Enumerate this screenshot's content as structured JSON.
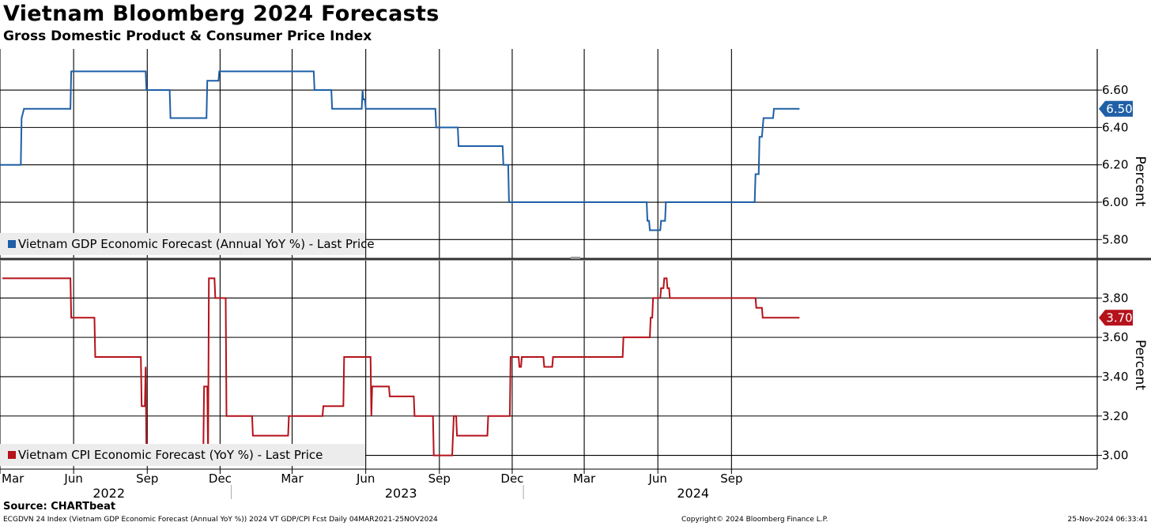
{
  "header": {
    "title": "Vietnam Bloomberg 2024 Forecasts",
    "subtitle": "Gross Domestic Product & Consumer Price Index"
  },
  "footer": {
    "source": "Source: CHARTbeat",
    "info": "ECGDVN 24 Index (Vietnam GDP Economic Forecast (Annual YoY %)) 2024 VT GDP/CPI Fcst  Daily 04MAR2021-25NOV2024",
    "copyright": "Copyright© 2024 Bloomberg Finance L.P.",
    "timestamp": "25-Nov-2024 06:33:41"
  },
  "x_axis": {
    "start_date": "2021-03-01",
    "end_date": "2024-12-01",
    "months": [
      {
        "date": "2021-03-01",
        "label": "Mar"
      },
      {
        "date": "2021-06-01",
        "label": "Jun"
      },
      {
        "date": "2021-09-01",
        "label": "Sep"
      },
      {
        "date": "2021-12-01",
        "label": "Dec"
      },
      {
        "date": "2022-03-01",
        "label": "Mar"
      },
      {
        "date": "2022-06-01",
        "label": "Jun"
      },
      {
        "date": "2022-09-01",
        "label": "Sep"
      },
      {
        "date": "2022-12-01",
        "label": "Dec"
      },
      {
        "date": "2023-03-01",
        "label": "Mar"
      },
      {
        "date": "2023-06-01",
        "label": "Jun"
      },
      {
        "date": "2023-09-01",
        "label": "Sep"
      }
    ],
    "years": [
      {
        "label": "2022",
        "center": "2021-07-15"
      },
      {
        "label": "2023",
        "center": "2022-07-15"
      },
      {
        "label": "2024",
        "center": "2023-07-15"
      }
    ],
    "year_boundaries": [
      "2021-12-15",
      "2022-12-15"
    ]
  },
  "chart_data": [
    {
      "type": "line",
      "series": [
        {
          "name": "Vietnam GDP Economic Forecast (Annual YoY %) - Last Price",
          "color": "#1f5fa6",
          "points": [
            [
              "2021-03-01",
              6.2
            ],
            [
              "2021-03-27",
              6.2
            ],
            [
              "2021-03-28",
              6.45
            ],
            [
              "2021-03-31",
              6.5
            ],
            [
              "2021-05-28",
              6.5
            ],
            [
              "2021-05-29",
              6.7
            ],
            [
              "2021-08-30",
              6.7
            ],
            [
              "2021-08-31",
              6.6
            ],
            [
              "2021-09-29",
              6.6
            ],
            [
              "2021-09-30",
              6.45
            ],
            [
              "2021-11-14",
              6.45
            ],
            [
              "2021-11-15",
              6.65
            ],
            [
              "2021-11-29",
              6.65
            ],
            [
              "2021-11-30",
              6.7
            ],
            [
              "2022-03-28",
              6.7
            ],
            [
              "2022-03-29",
              6.6
            ],
            [
              "2022-04-19",
              6.6
            ],
            [
              "2022-04-20",
              6.5
            ],
            [
              "2022-05-27",
              6.5
            ],
            [
              "2022-05-28",
              6.6
            ],
            [
              "2022-05-29",
              6.55
            ],
            [
              "2022-05-31",
              6.55
            ],
            [
              "2022-06-01",
              6.5
            ],
            [
              "2022-08-27",
              6.5
            ],
            [
              "2022-08-28",
              6.4
            ],
            [
              "2022-09-24",
              6.4
            ],
            [
              "2022-09-25",
              6.3
            ],
            [
              "2022-11-19",
              6.3
            ],
            [
              "2022-11-20",
              6.2
            ],
            [
              "2022-11-26",
              6.2
            ],
            [
              "2022-11-27",
              6.0
            ],
            [
              "2023-05-18",
              6.0
            ],
            [
              "2023-05-19",
              5.9
            ],
            [
              "2023-05-21",
              5.9
            ],
            [
              "2023-05-22",
              5.85
            ],
            [
              "2023-06-04",
              5.85
            ],
            [
              "2023-06-05",
              5.9
            ],
            [
              "2023-06-10",
              5.9
            ],
            [
              "2023-06-11",
              6.0
            ],
            [
              "2023-09-30",
              6.0
            ],
            [
              "2023-10-01",
              6.15
            ],
            [
              "2023-10-05",
              6.15
            ],
            [
              "2023-10-06",
              6.35
            ],
            [
              "2023-10-09",
              6.35
            ],
            [
              "2023-10-10",
              6.4
            ],
            [
              "2023-10-11",
              6.45
            ],
            [
              "2023-10-23",
              6.45
            ],
            [
              "2023-10-24",
              6.5
            ],
            [
              "2023-11-25",
              6.5
            ]
          ]
        }
      ],
      "last_value_label": "6.50",
      "y_ticks": [
        "5.80",
        "6.00",
        "6.20",
        "6.40",
        "6.60"
      ],
      "y_label": "Percent",
      "ylim": [
        5.7,
        6.82
      ]
    },
    {
      "type": "line",
      "series": [
        {
          "name": "Vietnam CPI Economic Forecast (YoY %) - Last Price",
          "color": "#b5121b",
          "points": [
            [
              "2021-03-04",
              3.9
            ],
            [
              "2021-05-28",
              3.9
            ],
            [
              "2021-05-29",
              3.7
            ],
            [
              "2021-06-27",
              3.7
            ],
            [
              "2021-06-28",
              3.5
            ],
            [
              "2021-08-24",
              3.5
            ],
            [
              "2021-08-25",
              3.25
            ],
            [
              "2021-08-29",
              3.25
            ],
            [
              "2021-08-30",
              3.45
            ],
            [
              "2021-08-31",
              3.0
            ],
            [
              "2021-11-10",
              3.0
            ],
            [
              "2021-11-11",
              3.35
            ],
            [
              "2021-11-15",
              3.35
            ],
            [
              "2021-11-16",
              3.0
            ],
            [
              "2021-11-17",
              3.9
            ],
            [
              "2021-11-24",
              3.9
            ],
            [
              "2021-11-25",
              3.8
            ],
            [
              "2021-12-08",
              3.8
            ],
            [
              "2021-12-09",
              3.2
            ],
            [
              "2022-01-10",
              3.2
            ],
            [
              "2022-01-11",
              3.1
            ],
            [
              "2022-02-24",
              3.1
            ],
            [
              "2022-02-25",
              3.2
            ],
            [
              "2022-04-08",
              3.2
            ],
            [
              "2022-04-09",
              3.25
            ],
            [
              "2022-05-04",
              3.25
            ],
            [
              "2022-05-05",
              3.5
            ],
            [
              "2022-06-07",
              3.5
            ],
            [
              "2022-06-08",
              3.2
            ],
            [
              "2022-06-09",
              3.35
            ],
            [
              "2022-06-30",
              3.35
            ],
            [
              "2022-07-01",
              3.3
            ],
            [
              "2022-07-31",
              3.3
            ],
            [
              "2022-08-01",
              3.2
            ],
            [
              "2022-08-24",
              3.2
            ],
            [
              "2022-08-25",
              3.0
            ],
            [
              "2022-09-17",
              3.0
            ],
            [
              "2022-09-18",
              3.1
            ],
            [
              "2022-09-19",
              3.2
            ],
            [
              "2022-09-22",
              3.2
            ],
            [
              "2022-09-23",
              3.1
            ],
            [
              "2022-10-31",
              3.1
            ],
            [
              "2022-11-01",
              3.2
            ],
            [
              "2022-11-28",
              3.2
            ],
            [
              "2022-11-29",
              3.5
            ],
            [
              "2022-12-09",
              3.5
            ],
            [
              "2022-12-10",
              3.45
            ],
            [
              "2022-12-12",
              3.45
            ],
            [
              "2022-12-13",
              3.5
            ],
            [
              "2023-01-09",
              3.5
            ],
            [
              "2023-01-10",
              3.45
            ],
            [
              "2023-01-20",
              3.45
            ],
            [
              "2023-01-21",
              3.5
            ],
            [
              "2023-04-18",
              3.5
            ],
            [
              "2023-04-19",
              3.6
            ],
            [
              "2023-05-22",
              3.6
            ],
            [
              "2023-05-23",
              3.7
            ],
            [
              "2023-05-25",
              3.7
            ],
            [
              "2023-05-26",
              3.8
            ],
            [
              "2023-06-04",
              3.8
            ],
            [
              "2023-06-05",
              3.85
            ],
            [
              "2023-06-08",
              3.85
            ],
            [
              "2023-06-09",
              3.9
            ],
            [
              "2023-06-12",
              3.9
            ],
            [
              "2023-06-13",
              3.85
            ],
            [
              "2023-06-15",
              3.85
            ],
            [
              "2023-06-16",
              3.8
            ],
            [
              "2023-10-01",
              3.8
            ],
            [
              "2023-10-02",
              3.75
            ],
            [
              "2023-10-09",
              3.75
            ],
            [
              "2023-10-10",
              3.7
            ],
            [
              "2023-11-25",
              3.7
            ]
          ]
        }
      ],
      "last_value_label": "3.70",
      "y_ticks": [
        "3.00",
        "3.20",
        "3.40",
        "3.60",
        "3.80"
      ],
      "y_label": "Percent",
      "ylim": [
        2.93,
        3.99
      ]
    }
  ]
}
